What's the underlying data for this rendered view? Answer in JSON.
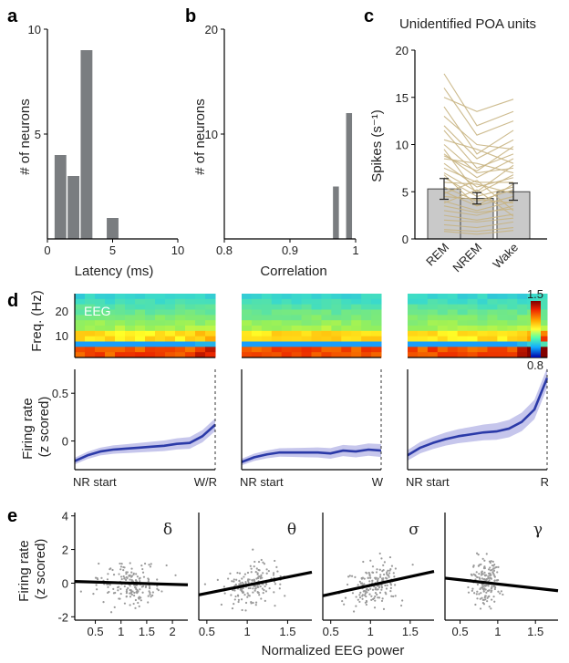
{
  "chart_data": [
    {
      "panel": "a",
      "type": "bar",
      "xlabel": "Latency (ms)",
      "ylabel": "# of neurons",
      "xlim": [
        0,
        10
      ],
      "ylim": [
        0,
        10
      ],
      "xticks": [
        "0",
        "5",
        "10"
      ],
      "yticks": [
        "5",
        "10"
      ],
      "bins": [
        1,
        2,
        3,
        5
      ],
      "values": [
        4,
        3,
        9,
        1
      ],
      "bin_width": 0.9
    },
    {
      "panel": "b",
      "type": "bar",
      "xlabel": "Correlation",
      "ylabel": "# of neurons",
      "xlim": [
        0.8,
        1.0
      ],
      "ylim": [
        0,
        20
      ],
      "xticks": [
        "0.8",
        "0.9",
        "1"
      ],
      "yticks": [
        "10",
        "20"
      ],
      "bins": [
        0.97,
        0.99
      ],
      "values": [
        5,
        12
      ],
      "bin_width": 0.009
    },
    {
      "panel": "c",
      "type": "bar",
      "title": "Unidentified POA units",
      "ylabel": "Spikes (s⁻¹)",
      "ylim": [
        0,
        20
      ],
      "yticks": [
        "0",
        "5",
        "10",
        "15",
        "20"
      ],
      "categories": [
        "REM",
        "NREM",
        "Wake"
      ],
      "values": [
        5.3,
        4.3,
        5.0
      ],
      "errors": [
        1.1,
        0.6,
        0.9
      ],
      "unit_lines": [
        [
          17.5,
          12.0,
          13.5
        ],
        [
          16.0,
          11.0,
          12.5
        ],
        [
          15.0,
          13.5,
          14.8
        ],
        [
          14.0,
          9.0,
          11.5
        ],
        [
          13.0,
          10.0,
          9.5
        ],
        [
          12.0,
          8.5,
          10.5
        ],
        [
          11.5,
          7.5,
          9.0
        ],
        [
          10.5,
          9.5,
          8.0
        ],
        [
          10.0,
          7.0,
          7.5
        ],
        [
          9.0,
          6.5,
          8.5
        ],
        [
          8.5,
          8.0,
          7.0
        ],
        [
          8.0,
          5.5,
          6.5
        ],
        [
          7.5,
          6.0,
          6.0
        ],
        [
          7.0,
          5.0,
          7.8
        ],
        [
          6.5,
          4.5,
          5.5
        ],
        [
          6.0,
          5.8,
          4.8
        ],
        [
          5.5,
          4.0,
          5.2
        ],
        [
          5.0,
          3.5,
          4.5
        ],
        [
          4.5,
          4.2,
          3.8
        ],
        [
          4.0,
          3.0,
          4.0
        ],
        [
          3.5,
          2.8,
          3.2
        ],
        [
          3.0,
          2.5,
          3.5
        ],
        [
          2.5,
          2.0,
          2.6
        ],
        [
          2.0,
          1.8,
          2.2
        ],
        [
          1.5,
          1.2,
          1.8
        ],
        [
          1.0,
          0.8,
          1.2
        ],
        [
          0.8,
          0.5,
          0.9
        ],
        [
          6.8,
          3.5,
          5.8
        ],
        [
          4.8,
          6.2,
          3.0
        ],
        [
          9.5,
          4.8,
          6.8
        ],
        [
          3.8,
          5.2,
          2.4
        ],
        [
          8.8,
          7.2,
          9.8
        ]
      ]
    },
    {
      "panel": "d",
      "type": "heatmap",
      "ylabel": "Freq. (Hz)",
      "yticks": [
        "10",
        "20"
      ],
      "label": "EEG",
      "colorbar_max": "1.5",
      "colorbar_min": "0.8"
    },
    {
      "panel": "d",
      "type": "line",
      "ylabel": "Firing rate (z scored)",
      "ylim": [
        -0.3,
        0.75
      ],
      "yticks": [
        "0",
        "0.5"
      ],
      "subplots": [
        {
          "start_label": "NR start",
          "end_label": "W/R",
          "y": [
            -0.21,
            -0.15,
            -0.11,
            -0.09,
            -0.08,
            -0.07,
            -0.06,
            -0.05,
            -0.03,
            -0.02,
            0.05,
            0.17
          ],
          "band": 0.035
        },
        {
          "start_label": "NR start",
          "end_label": "W",
          "y": [
            -0.22,
            -0.17,
            -0.14,
            -0.12,
            -0.12,
            -0.12,
            -0.12,
            -0.13,
            -0.1,
            -0.11,
            -0.09,
            -0.1
          ],
          "band": 0.035
        },
        {
          "start_label": "NR start",
          "end_label": "R",
          "y": [
            -0.15,
            -0.07,
            -0.02,
            0.02,
            0.05,
            0.07,
            0.09,
            0.1,
            0.13,
            0.2,
            0.33,
            0.66
          ],
          "band": 0.055
        }
      ]
    },
    {
      "panel": "e",
      "type": "scatter",
      "ylabel": "Firing rate (z scored)",
      "xlabel": "Normalized EEG power",
      "ylim": [
        -2.2,
        4.2
      ],
      "yticks": [
        "4",
        "2",
        "0",
        "-2"
      ],
      "subplots": [
        {
          "band": "δ",
          "xlim": [
            0.1,
            2.3
          ],
          "xticks": [
            "0.5",
            "1",
            "1.5",
            "2"
          ],
          "center": 1.2,
          "spread": 0.28,
          "fit": [
            [
              0.1,
              0.1
            ],
            [
              2.3,
              -0.1
            ]
          ]
        },
        {
          "band": "θ",
          "xlim": [
            0.4,
            1.8
          ],
          "xticks": [
            "0.5",
            "1",
            "1.5"
          ],
          "center": 1.05,
          "spread": 0.18,
          "fit": [
            [
              0.4,
              -0.7
            ],
            [
              1.8,
              0.65
            ]
          ]
        },
        {
          "band": "σ",
          "xlim": [
            0.4,
            1.8
          ],
          "xticks": [
            "0.5",
            "1",
            "1.5"
          ],
          "center": 1.05,
          "spread": 0.17,
          "fit": [
            [
              0.4,
              -0.75
            ],
            [
              1.8,
              0.7
            ]
          ]
        },
        {
          "band": "γ",
          "xlim": [
            0.3,
            1.8
          ],
          "xticks": [
            "0.5",
            "1",
            "1.5"
          ],
          "center": 0.85,
          "spread": 0.09,
          "fit": [
            [
              0.3,
              0.3
            ],
            [
              1.8,
              -0.45
            ]
          ]
        }
      ]
    }
  ],
  "panel_labels": [
    "a",
    "b",
    "c",
    "d",
    "e"
  ]
}
